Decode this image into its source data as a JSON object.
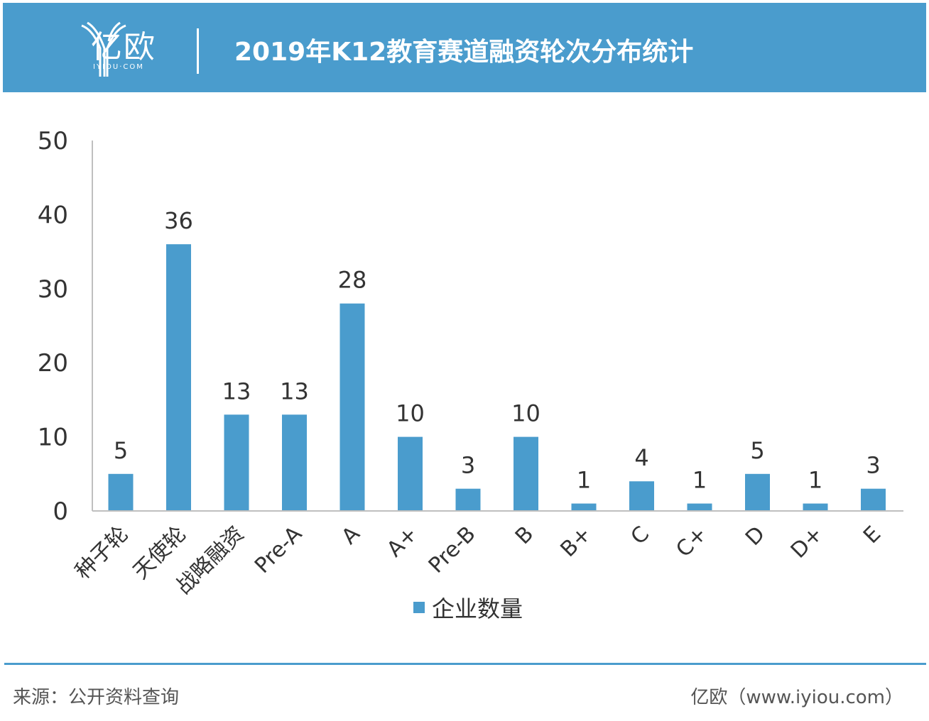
{
  "header": {
    "logo_text": "亿欧",
    "logo_sub": "IYIOU·COM",
    "title": "2019年K12教育赛道融资轮次分布统计"
  },
  "colors": {
    "accent": "#4a9ccd",
    "bar": "#4a9ccd",
    "axis": "#bfbfbf",
    "text": "#333333"
  },
  "chart_data": {
    "type": "bar",
    "categories": [
      "种子轮",
      "天使轮",
      "战略融资",
      "Pre-A",
      "A",
      "A+",
      "Pre-B",
      "B",
      "B+",
      "C",
      "C+",
      "D",
      "D+",
      "E"
    ],
    "series": [
      {
        "name": "企业数量",
        "values": [
          5,
          36,
          13,
          13,
          28,
          10,
          3,
          10,
          1,
          4,
          1,
          5,
          1,
          3
        ]
      }
    ],
    "ylim": [
      0,
      50
    ],
    "yticks": [
      0,
      10,
      20,
      30,
      40,
      50
    ],
    "grid": false,
    "legend_position": "bottom-center",
    "data_labels": true
  },
  "footer": {
    "source": "来源：公开资料查询",
    "credit": "亿欧（www.iyiou.com）"
  }
}
